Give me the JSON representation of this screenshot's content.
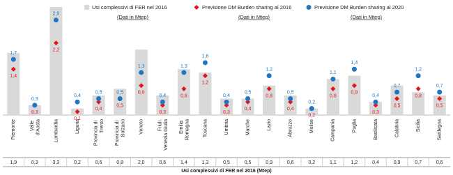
{
  "chart_data": {
    "type": "bar",
    "categories": [
      "Piemonte",
      "Valle d'Aosta",
      "Lombardia",
      "Liguria",
      "Provincia di Trento",
      "Provincia di Bolzano",
      "Veneto",
      "Friuli Venezia Giulia",
      "Emilia Romagna",
      "Toscana",
      "Umbria",
      "Marche",
      "Lazio",
      "Abruzzo",
      "Molise",
      "Campania",
      "Puglia",
      "Basilicata",
      "Calabria",
      "Sicilia",
      "Sardegna"
    ],
    "series": [
      {
        "name": "Usi complessivi di FER nel 2016",
        "subtitle": "(Dati in Mtep)",
        "color": "#d9d9d9",
        "values": [
          1.9,
          0.3,
          3.3,
          0.2,
          0.6,
          0.8,
          2.0,
          0.6,
          1.4,
          1.3,
          0.5,
          0.5,
          0.9,
          0.6,
          0.2,
          1.1,
          1.2,
          0.4,
          0.9,
          0.7,
          0.6
        ],
        "value_labels": [
          "1,9",
          "0,3",
          "3,3",
          "0,2",
          "0,6",
          "0,8",
          "2,0",
          "0,6",
          "1,4",
          "1,3",
          "0,5",
          "0,5",
          "0,9",
          "0,6",
          "0,2",
          "1,1",
          "1,2",
          "0,4",
          "0,9",
          "0,7",
          "0,6"
        ]
      },
      {
        "name": "Previsione DM Burden sharing al 2016",
        "subtitle": "(Dati in Mtep)",
        "color": "#e3151a",
        "values": [
          1.4,
          0.3,
          2.2,
          0.1,
          0.4,
          0.5,
          0.9,
          0.3,
          0.8,
          1.2,
          0.3,
          0.4,
          0.8,
          0.4,
          0.2,
          0.8,
          0.9,
          0.3,
          0.5,
          0.8,
          0.5
        ],
        "value_labels": [
          "1,4",
          "0,3",
          "2,2",
          "0,1",
          "0,4",
          "0,5",
          "0,9",
          "0,3",
          "0,8",
          "1,2",
          "0,3",
          "0,4",
          "0,8",
          "0,4",
          "0,2",
          "0,8",
          "0,9",
          "0,3",
          "0,5",
          "0,8",
          "0,5"
        ]
      },
      {
        "name": "Previsione DM Burden sharing al 2020",
        "subtitle": "(Dati in Mtep)",
        "color": "#1f77c4",
        "values": [
          1.7,
          0.3,
          2.9,
          0.4,
          0.5,
          0.5,
          1.3,
          0.4,
          1.3,
          1.6,
          0.4,
          0.5,
          1.2,
          0.5,
          0.2,
          1.1,
          1.4,
          0.4,
          0.7,
          1.2,
          0.7
        ],
        "value_labels": [
          "1,7",
          "0,3",
          "2,9",
          "0,4",
          "0,5",
          "0,5",
          "1,3",
          "0,4",
          "1,3",
          "1,6",
          "0,4",
          "0,5",
          "1,2",
          "0,5",
          "0,2",
          "1,1",
          "1,4",
          "0,4",
          "0,7",
          "1,2",
          "0,7"
        ]
      }
    ],
    "x_label": "Usi complessivi di FER nel 2016  (Mtep)"
  }
}
